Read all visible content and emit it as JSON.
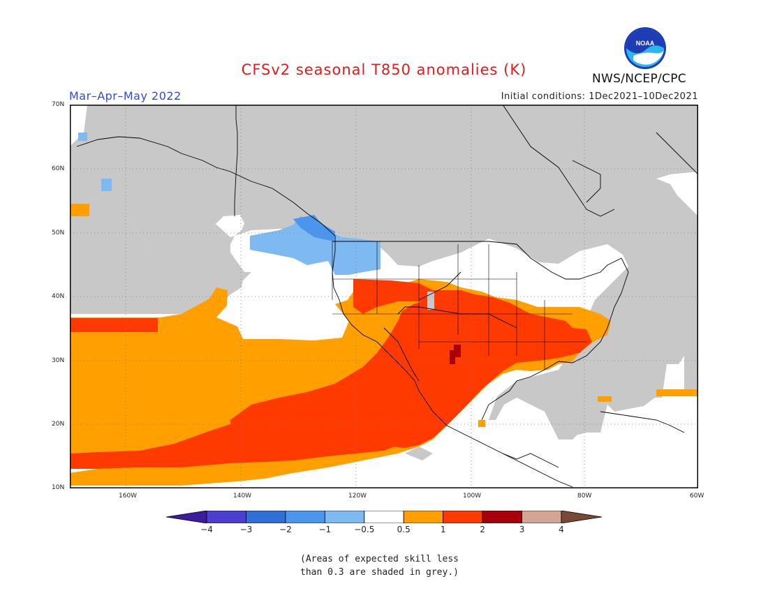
{
  "title": "CFSv2 seasonal T850 anomalies (K)",
  "season": "Mar–Apr–May 2022",
  "initial_conditions": "Initial conditions: 1Dec2021–10Dec2021",
  "organization": "NWS/NCEP/CPC",
  "logo_text": "NOAA",
  "lat_labels": [
    "70N",
    "60N",
    "50N",
    "40N",
    "30N",
    "20N",
    "10N"
  ],
  "lon_labels": [
    "160W",
    "140W",
    "120W",
    "100W",
    "80W",
    "60W"
  ],
  "colorbar": {
    "ticks": [
      "−4",
      "−3",
      "−2",
      "−1",
      "−0.5",
      "0.5",
      "1",
      "2",
      "3",
      "4"
    ],
    "colors": [
      "#3c1c9c",
      "#4a3fd0",
      "#2e6fd8",
      "#4b96ec",
      "#7fb9f2",
      "#ffffff",
      "#ff9f00",
      "#ff3a00",
      "#a80008",
      "#d4a592",
      "#7a4a36"
    ]
  },
  "note_line1": "(Areas of expected skill less",
  "note_line2": "than 0.3 are shaded in grey.)"
}
